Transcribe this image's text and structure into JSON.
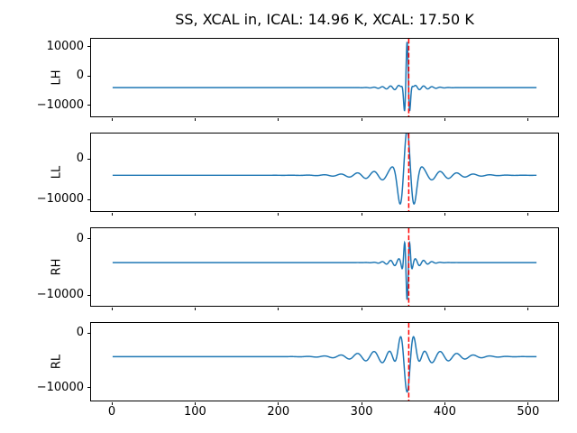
{
  "chart_data": {
    "type": "line",
    "title": "SS, XCAL in, ICAL: 14.96 K, XCAL: 17.50 K",
    "x": {
      "lim": [
        -26,
        537
      ],
      "ticks": [
        0,
        100,
        200,
        300,
        400,
        500
      ],
      "n_samples": 512
    },
    "line_color": "#1f77b4",
    "marker_line": {
      "x": 357,
      "color": "#ff0000",
      "style": "dashed",
      "meaning": "calibration pulse position"
    },
    "grid": false,
    "legend": "none",
    "subplots": [
      {
        "label": "LH",
        "ylim": [
          -14000,
          13000
        ],
        "yticks": [
          10000,
          0,
          -10000
        ],
        "baseline": -4000,
        "peak": 11000,
        "trough": -11000,
        "burst": {
          "center": 355,
          "main_amp": 15000,
          "main_period": 7,
          "main_width": 4,
          "ripple_amp": 900,
          "ripple_period": 10,
          "ripple_width": 30
        }
      },
      {
        "label": "LL",
        "ylim": [
          -13000,
          6500
        ],
        "yticks": [
          0,
          -10000
        ],
        "baseline": -4000,
        "peak": 6000,
        "trough": -9700,
        "burst": {
          "center": 355,
          "main_amp": 10000,
          "main_period": 18,
          "main_width": 12,
          "ripple_amp": 1400,
          "ripple_period": 20,
          "ripple_width": 65
        }
      },
      {
        "label": "RH",
        "ylim": [
          -12000,
          2000
        ],
        "yticks": [
          0,
          -10000
        ],
        "baseline": -4200,
        "peak": -700,
        "trough": -11700,
        "burst": {
          "center": 355,
          "main_amp": -7500,
          "main_period": 7,
          "main_width": 4,
          "ripple_amp": 800,
          "ripple_period": 10,
          "ripple_width": 24
        }
      },
      {
        "label": "RL",
        "ylim": [
          -12500,
          2000
        ],
        "yticks": [
          0,
          -10000
        ],
        "baseline": -4300,
        "peak": 300,
        "trough": -12300,
        "burst": {
          "center": 355,
          "main_amp": -8000,
          "main_period": 18,
          "main_width": 12,
          "ripple_amp": 1400,
          "ripple_period": 20,
          "ripple_width": 65
        }
      }
    ]
  }
}
